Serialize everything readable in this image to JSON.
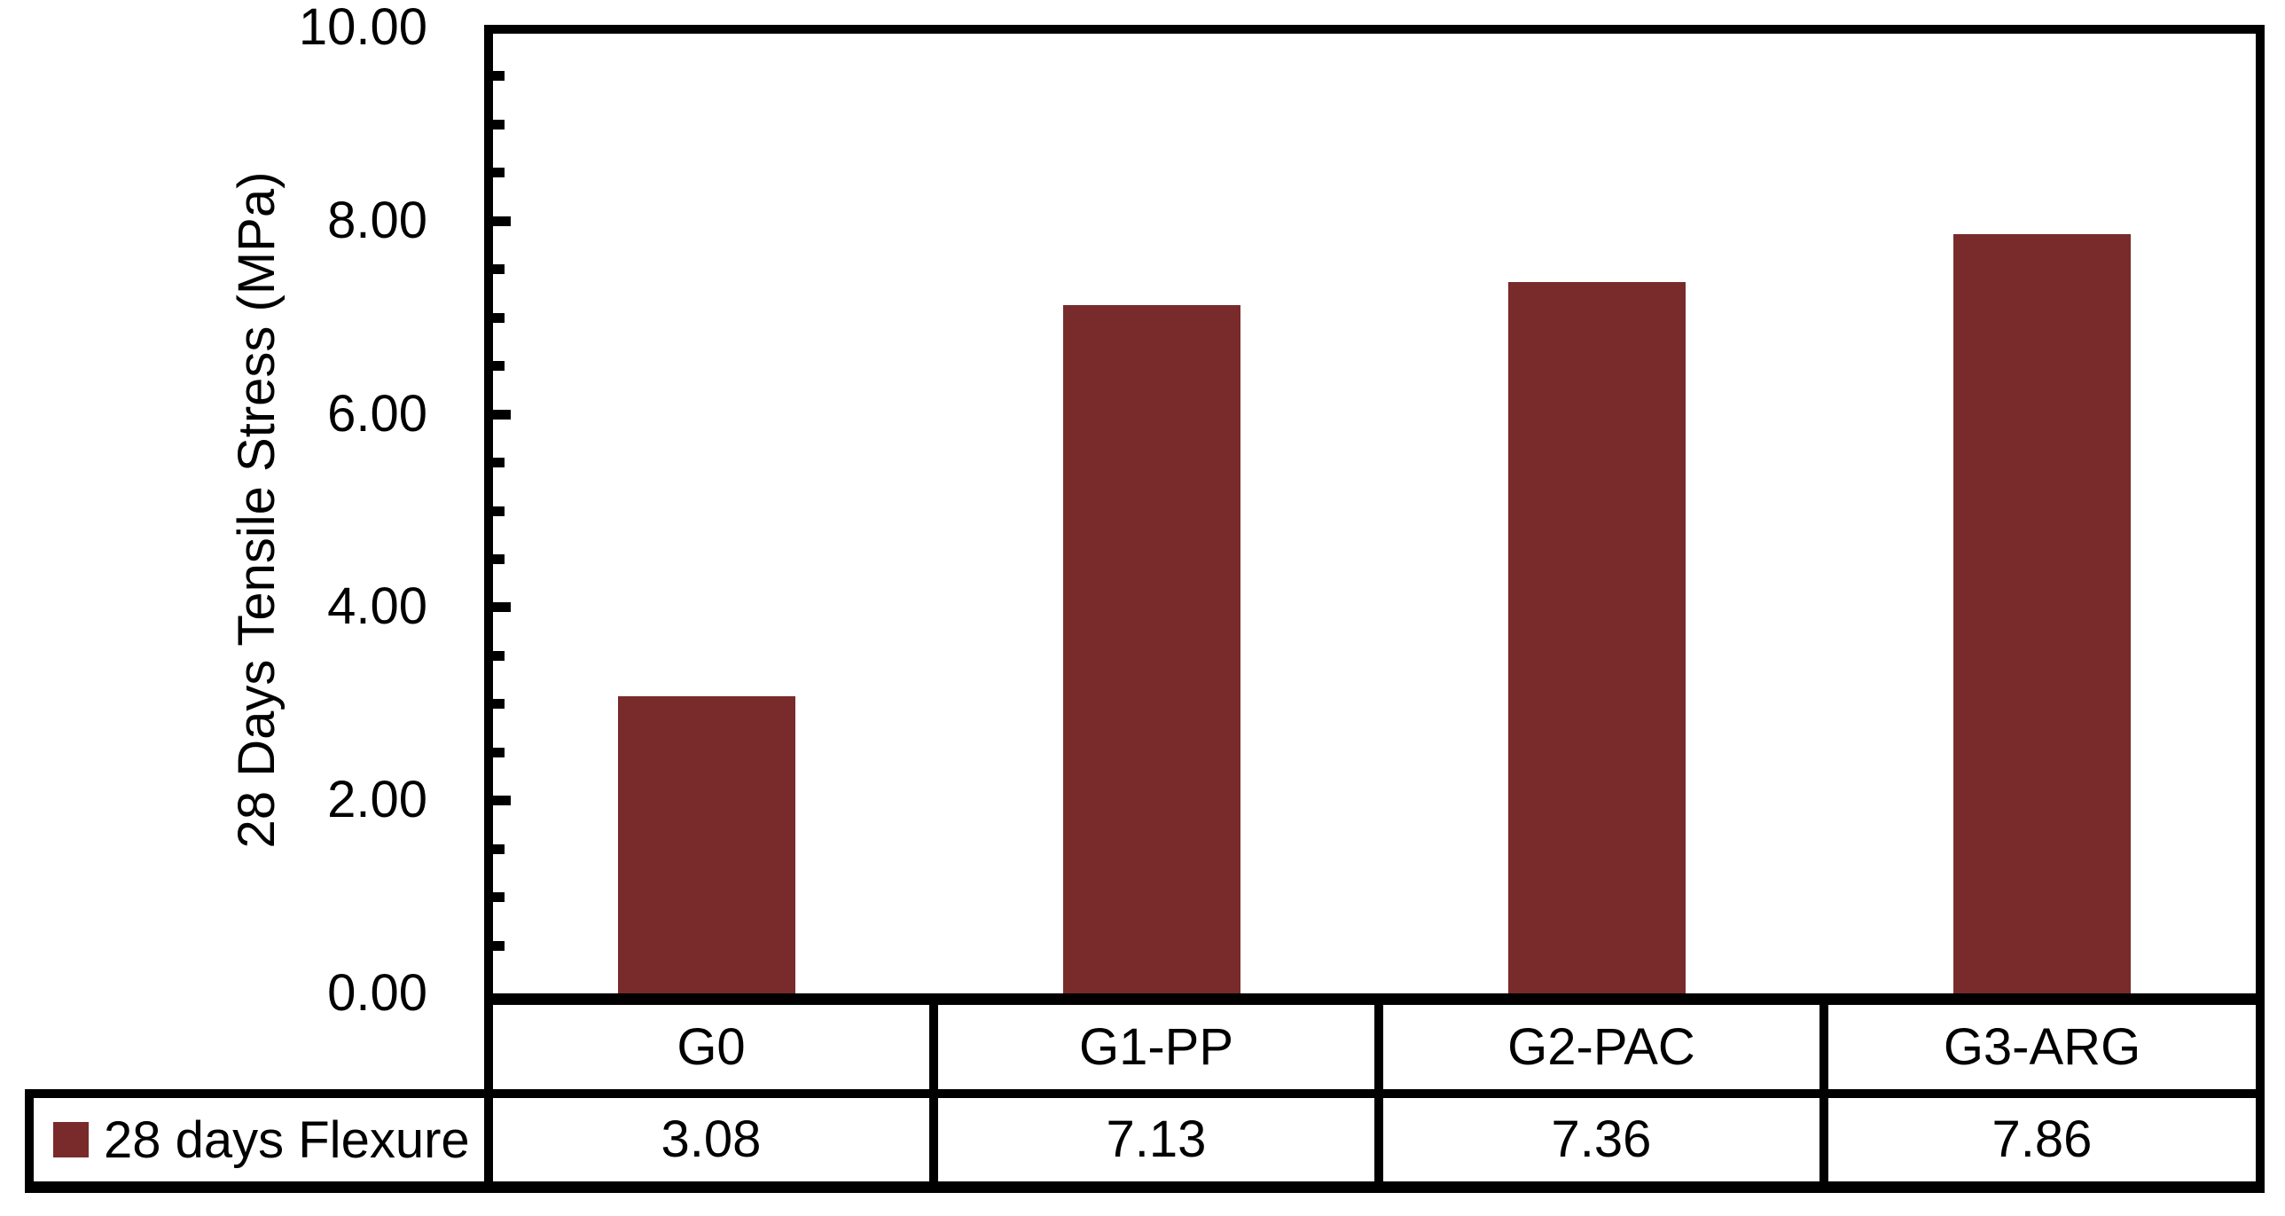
{
  "chart_data": {
    "type": "bar",
    "categories": [
      "G0",
      "G1-PP",
      "G2-PAC",
      "G3-ARG"
    ],
    "series": [
      {
        "name": "28 days Flexure",
        "values": [
          3.08,
          7.13,
          7.36,
          7.86
        ]
      }
    ],
    "title": "",
    "xlabel": "",
    "ylabel": "28 Days Tensile Stress (MPa)",
    "ylim": [
      0,
      10
    ],
    "ytick_major_step": 2,
    "ytick_minor_step": 0.5,
    "ytick_labels": [
      "0.00",
      "2.00",
      "4.00",
      "6.00",
      "8.00",
      "10.00"
    ],
    "grid": false,
    "legend_position": "bottom-left-table",
    "bar_color": "#782B2A"
  },
  "axis": {
    "ylabel": "28 Days Tensile Stress (MPa)"
  },
  "yticks": {
    "t0": "0.00",
    "t2": "2.00",
    "t4": "4.00",
    "t6": "6.00",
    "t8": "8.00",
    "t10": "10.00"
  },
  "legend": {
    "label": "28 days Flexure",
    "marker_color": "#782B2A"
  },
  "table": {
    "categories": [
      "G0",
      "G1-PP",
      "G2-PAC",
      "G3-ARG"
    ],
    "values": [
      "3.08",
      "7.13",
      "7.36",
      "7.86"
    ]
  },
  "colors": {
    "bar": "#782B2A",
    "axis": "#000000",
    "background": "#FFFFFF",
    "text": "#000000"
  }
}
